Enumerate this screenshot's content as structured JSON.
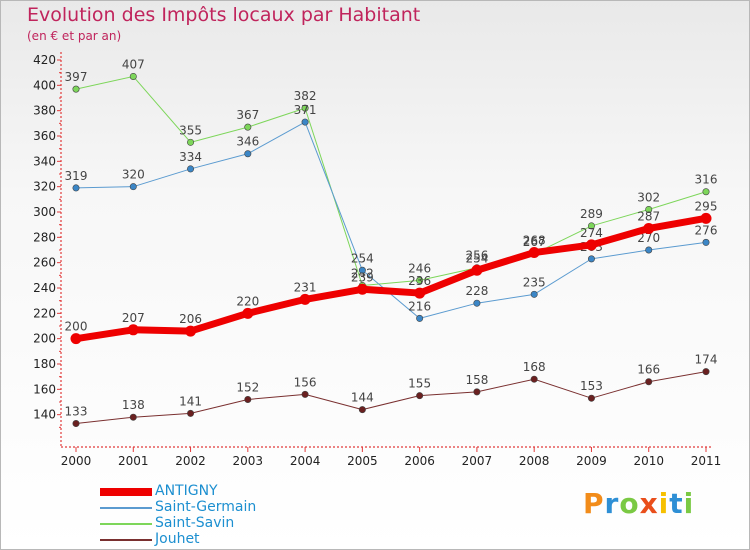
{
  "header": {
    "title": "Evolution des Impôts locaux par Habitant",
    "subtitle": "(en € et par an)"
  },
  "logo": {
    "text": "Proxiti",
    "letters": [
      "P",
      "r",
      "o",
      "x",
      "i",
      "t",
      "i"
    ],
    "colors": [
      "#f28c1a",
      "#2e8fd5",
      "#7ac943",
      "#e94e1b",
      "#f6c000",
      "#2e8fd5",
      "#7ac943"
    ]
  },
  "chart_data": {
    "type": "line",
    "title": "Evolution des Impôts locaux par Habitant",
    "subtitle": "(en € et par an)",
    "categories": [
      "2000",
      "2001",
      "2002",
      "2003",
      "2004",
      "2005",
      "2006",
      "2007",
      "2008",
      "2009",
      "2010",
      "2011"
    ],
    "ylim": [
      120,
      420
    ],
    "yticks": [
      140,
      160,
      180,
      200,
      220,
      240,
      260,
      280,
      300,
      320,
      340,
      360,
      380,
      400,
      420
    ],
    "grid": false,
    "legend_position": "bottom-left",
    "series": [
      {
        "name": "Saint-Savin",
        "color": "#7dd65a",
        "marker": "#7dd65a",
        "width": 1,
        "values": [
          397,
          407,
          355,
          367,
          382,
          242,
          246,
          256,
          267,
          289,
          302,
          316
        ]
      },
      {
        "name": "Saint-Germain",
        "color": "#5b9bd0",
        "marker": "#3b86c6",
        "width": 1,
        "values": [
          319,
          320,
          334,
          346,
          371,
          254,
          216,
          228,
          235,
          263,
          270,
          276
        ]
      },
      {
        "name": "Jouhet",
        "color": "#7a3030",
        "marker": "#6a2020",
        "width": 1,
        "values": [
          133,
          138,
          141,
          152,
          156,
          144,
          155,
          158,
          168,
          153,
          166,
          174
        ]
      },
      {
        "name": "ANTIGNY",
        "color": "#ee0000",
        "marker": "#ee0000",
        "width": 7,
        "values": [
          200,
          207,
          206,
          220,
          231,
          239,
          236,
          254,
          268,
          274,
          287,
          295
        ]
      }
    ],
    "legend_order": [
      "ANTIGNY",
      "Saint-Germain",
      "Saint-Savin",
      "Jouhet"
    ]
  }
}
